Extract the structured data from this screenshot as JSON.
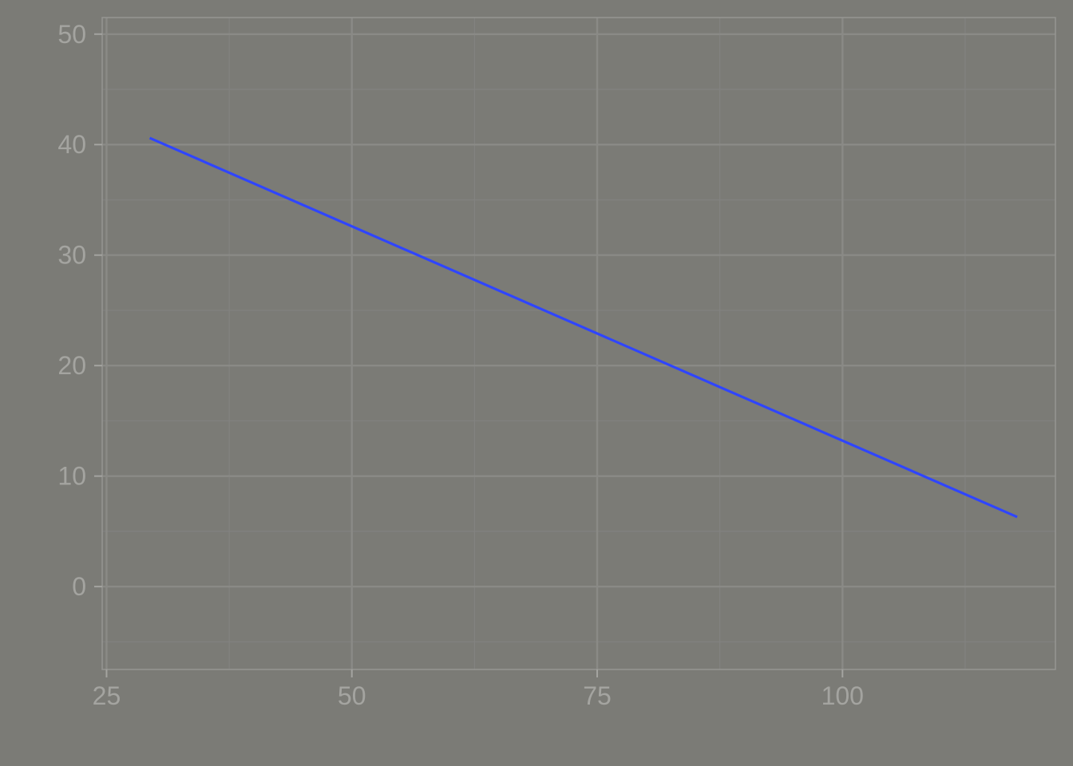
{
  "chart_data": {
    "type": "line",
    "title": "",
    "xlabel": "",
    "ylabel": "",
    "x_ticks": [
      25,
      50,
      75,
      100
    ],
    "y_ticks": [
      0,
      10,
      20,
      30,
      40,
      50
    ],
    "xlim": [
      24.8,
      121.7
    ],
    "ylim": [
      -7.5,
      51.5
    ],
    "grid": true,
    "legend": "none",
    "series": [
      {
        "x": [
          29.4,
          117.8
        ],
        "y": [
          40.6,
          6.3
        ]
      }
    ],
    "colors": {
      "background": "#7b7b76",
      "panel": "#7b7b76",
      "grid_major": "#8a8a86",
      "grid_minor": "#828280",
      "panel_border": "#969692",
      "tick_label": "#a4a4a0",
      "line": "#2f45ff"
    }
  }
}
